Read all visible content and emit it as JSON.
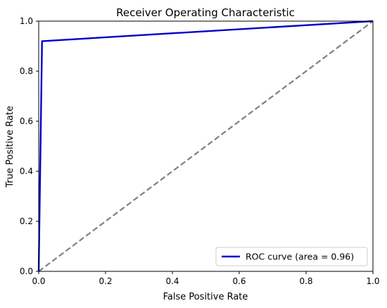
{
  "chart_data": {
    "type": "line",
    "title": "Receiver Operating Characteristic",
    "xlabel": "False Positive Rate",
    "ylabel": "True Positive Rate",
    "xlim": [
      0.0,
      1.0
    ],
    "ylim": [
      0.0,
      1.0
    ],
    "grid": false,
    "legend_position": "lower-right",
    "x_ticks": [
      "0.0",
      "0.2",
      "0.4",
      "0.6",
      "0.8",
      "1.0"
    ],
    "y_ticks": [
      "0.0",
      "0.2",
      "0.4",
      "0.6",
      "0.8",
      "1.0"
    ],
    "series": [
      {
        "name": "ROC curve (area = 0.96)",
        "color": "#0000cc",
        "line_style": "solid",
        "x": [
          0.0,
          0.01,
          1.0
        ],
        "y": [
          0.0,
          0.92,
          1.0
        ]
      },
      {
        "color": "#808080",
        "line_style": "dashed",
        "x": [
          0.0,
          1.0
        ],
        "y": [
          0.0,
          1.0
        ]
      }
    ]
  }
}
